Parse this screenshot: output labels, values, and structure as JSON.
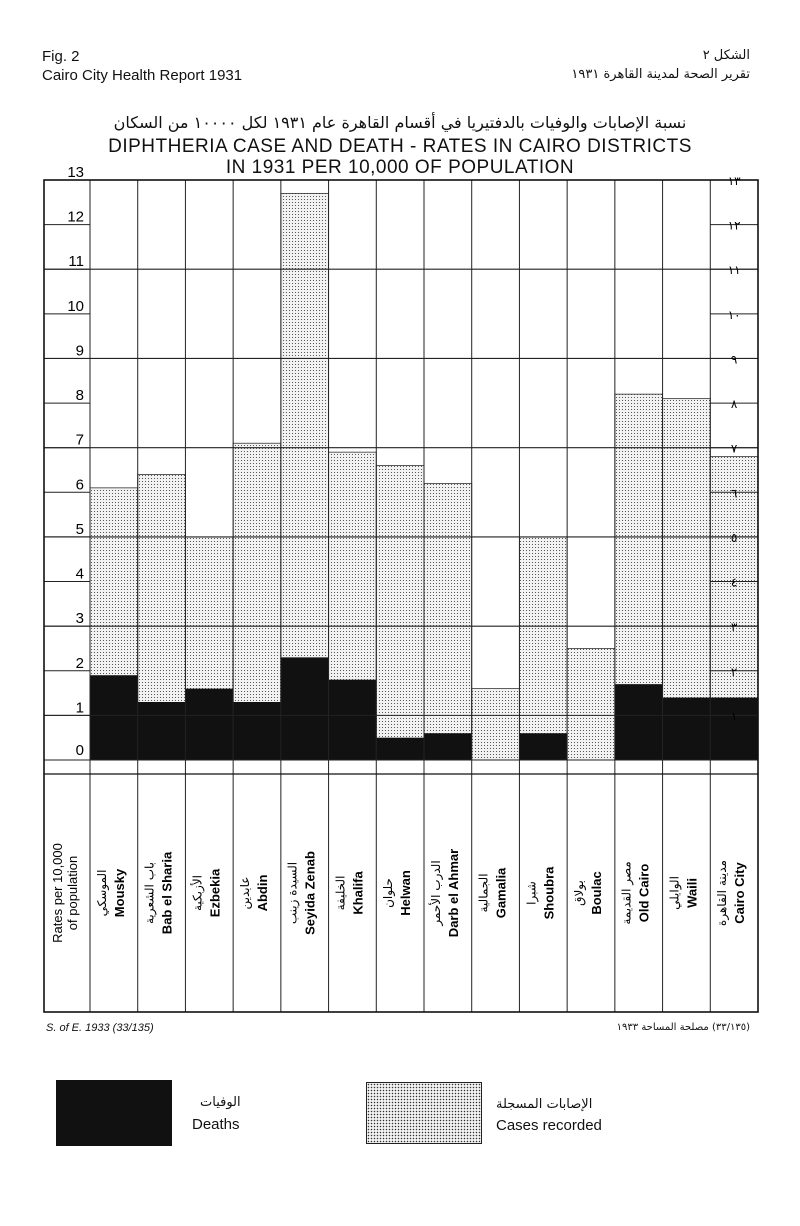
{
  "header": {
    "fig_label": "Fig. 2",
    "report": "Cairo City Health Report 1931",
    "fig_label_ar": "الشكل ٢",
    "report_ar": "تقرير الصحة لمدينة القاهرة ١٩٣١"
  },
  "title_ar": "نسبة الإصابات والوفيات بالدفتيريا في أقسام القاهرة عام ١٩٣١ لكل ١٠٠٠٠ من السكان",
  "chart_data": {
    "type": "bar",
    "title": "DIPHTHERIA CASE AND DEATH - RATES IN CAIRO DISTRICTS IN 1931 PER 10,000 OF POPULATION",
    "title_line1": "DIPHTHERIA CASE AND DEATH - RATES IN CAIRO DISTRICTS",
    "title_line2": "IN 1931 PER 10,000 OF POPULATION",
    "ylabel": "Rates per 10,000 of population",
    "ylim": [
      0,
      13
    ],
    "y_ticks": [
      "0",
      "1",
      "2",
      "3",
      "4",
      "5",
      "6",
      "7",
      "8",
      "9",
      "10",
      "11",
      "12",
      "13"
    ],
    "y_ticks_ar": [
      "١",
      "٢",
      "٣",
      "٤",
      "٥",
      "٦",
      "٧",
      "٨",
      "٩",
      "١٠",
      "١١",
      "١٢",
      "١٣"
    ],
    "categories": [
      "Mousky",
      "Bab el Sharia",
      "Ezbekia",
      "Abdin",
      "Seyida Zenab",
      "Khalifa",
      "Helwan",
      "Darb el Ahmar",
      "Gamalia",
      "Shoubra",
      "Boulac",
      "Old Cairo",
      "Waili",
      "Cairo City"
    ],
    "categories_ar": [
      "الموسكي",
      "باب الشعرية",
      "الأزبكية",
      "عابدين",
      "السيدة زينب",
      "الخليفة",
      "حلوان",
      "الدرب الأحمر",
      "الجمالية",
      "شبرا",
      "بولاق",
      "مصر القديمة",
      "الوايلي",
      "مدينة القاهرة"
    ],
    "series": [
      {
        "name": "Cases recorded",
        "name_ar": "الإصابات المسجلة",
        "values": [
          6.1,
          6.4,
          5.0,
          7.1,
          12.7,
          6.9,
          6.6,
          6.2,
          1.6,
          5.0,
          2.5,
          8.2,
          8.1,
          6.8
        ]
      },
      {
        "name": "Deaths",
        "name_ar": "الوفيات",
        "values": [
          1.9,
          1.3,
          1.6,
          1.3,
          2.3,
          1.8,
          0.5,
          0.6,
          0.0,
          0.6,
          0.0,
          1.7,
          1.4,
          1.4
        ]
      }
    ],
    "grid": true,
    "legend": "bottom"
  },
  "footnote": "S. of E. 1933 (33/135)",
  "footnote_ar": "(٣٣/١٣٥) مصلحة المساحة ١٩٣٣"
}
